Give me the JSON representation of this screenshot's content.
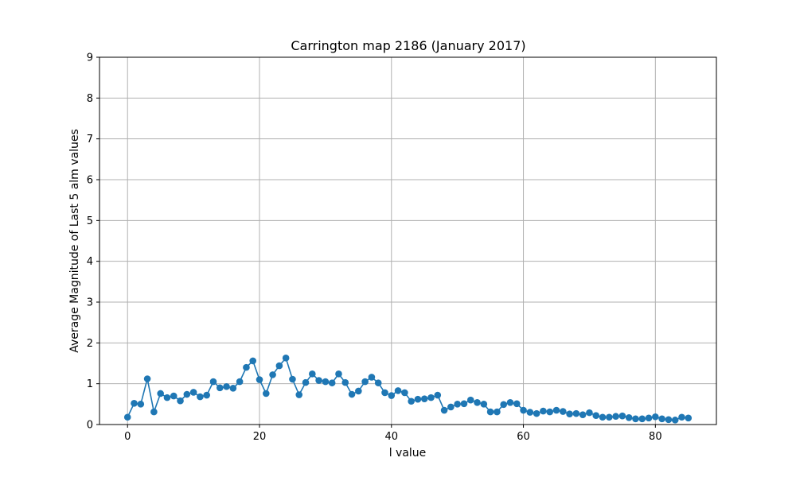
{
  "chart_data": {
    "type": "line",
    "title": "Carrington map 2186 (January 2017)",
    "xlabel": "l value",
    "ylabel": "Average Magnitude of Last 5 alm values",
    "xlim": [
      -4.25,
      89.25
    ],
    "ylim": [
      0,
      9
    ],
    "xticks": [
      0,
      20,
      40,
      60,
      80
    ],
    "yticks": [
      0,
      1,
      2,
      3,
      4,
      5,
      6,
      7,
      8,
      9
    ],
    "grid": true,
    "marker": "circle",
    "color": "#1f77b4",
    "series": [
      {
        "x": [
          0,
          1,
          2,
          3,
          4,
          5,
          6,
          7,
          8,
          9,
          10,
          11,
          12,
          13,
          14,
          15,
          16,
          17,
          18,
          19,
          20,
          21,
          22,
          23,
          24,
          25,
          26,
          27,
          28,
          29,
          30,
          31,
          32,
          33,
          34,
          35,
          36,
          37,
          38,
          39,
          40,
          41,
          42,
          43,
          44,
          45,
          46,
          47,
          48,
          49,
          50,
          51,
          52,
          53,
          54,
          55,
          56,
          57,
          58,
          59,
          60,
          61,
          62,
          63,
          64,
          65,
          66,
          67,
          68,
          69,
          70,
          71,
          72,
          73,
          74,
          75,
          76,
          77,
          78,
          79,
          80,
          81,
          82,
          83,
          84,
          85
        ],
        "values": [
          0.18,
          0.52,
          0.5,
          1.12,
          0.31,
          0.76,
          0.66,
          0.7,
          0.58,
          0.74,
          0.79,
          0.68,
          0.72,
          1.05,
          0.9,
          0.93,
          0.89,
          1.05,
          1.4,
          1.56,
          1.1,
          0.76,
          1.22,
          1.44,
          1.63,
          1.11,
          0.73,
          1.03,
          1.24,
          1.08,
          1.05,
          1.02,
          1.24,
          1.03,
          0.74,
          0.82,
          1.05,
          1.16,
          1.02,
          0.78,
          0.71,
          0.83,
          0.78,
          0.57,
          0.62,
          0.63,
          0.66,
          0.72,
          0.35,
          0.43,
          0.5,
          0.51,
          0.6,
          0.54,
          0.5,
          0.31,
          0.31,
          0.49,
          0.54,
          0.51,
          0.35,
          0.3,
          0.27,
          0.33,
          0.31,
          0.35,
          0.32,
          0.26,
          0.27,
          0.24,
          0.29,
          0.22,
          0.18,
          0.18,
          0.2,
          0.21,
          0.17,
          0.14,
          0.14,
          0.16,
          0.19,
          0.14,
          0.12,
          0.11,
          0.18,
          0.16
        ]
      }
    ]
  }
}
